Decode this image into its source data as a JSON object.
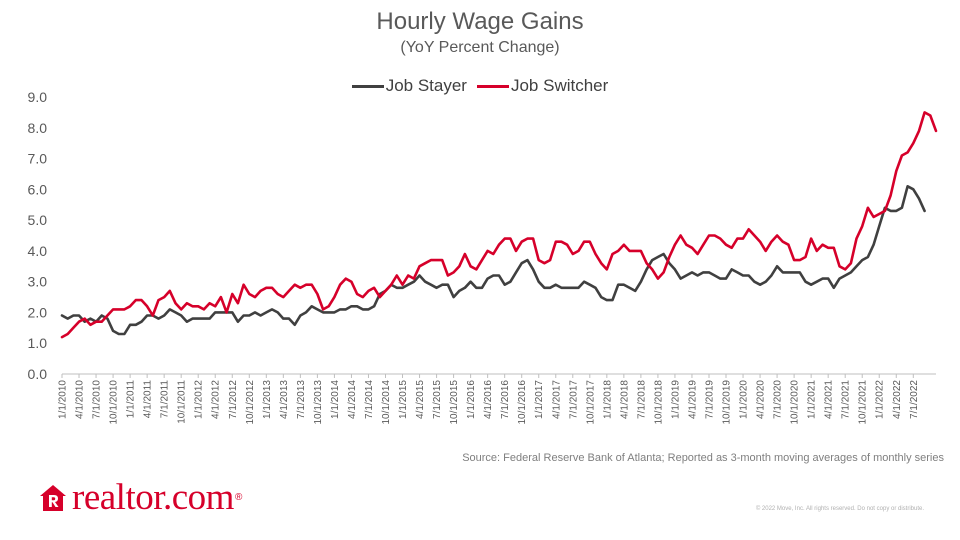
{
  "chart_data": {
    "type": "line",
    "title": "Hourly Wage Gains",
    "subtitle": "(YoY Percent Change)",
    "ylim": [
      0,
      9
    ],
    "yticks": [
      "0.0",
      "1.0",
      "2.0",
      "3.0",
      "4.0",
      "5.0",
      "6.0",
      "7.0",
      "8.0",
      "9.0"
    ],
    "grid": false,
    "legend_position": "top-center",
    "start_month": "2010-01",
    "xtick_labels": [
      "1/1/2010",
      "4/1/2010",
      "7/1/2010",
      "10/1/2010",
      "1/1/2011",
      "4/1/2011",
      "7/1/2011",
      "10/1/2011",
      "1/1/2012",
      "4/1/2012",
      "7/1/2012",
      "10/1/2012",
      "1/1/2013",
      "4/1/2013",
      "7/1/2013",
      "10/1/2013",
      "1/1/2014",
      "4/1/2014",
      "7/1/2014",
      "10/1/2014",
      "1/1/2015",
      "4/1/2015",
      "7/1/2015",
      "10/1/2015",
      "1/1/2016",
      "4/1/2016",
      "7/1/2016",
      "10/1/2016",
      "1/1/2017",
      "4/1/2017",
      "7/1/2017",
      "10/1/2017",
      "1/1/2018",
      "4/1/2018",
      "7/1/2018",
      "10/1/2018",
      "1/1/2019",
      "4/1/2019",
      "7/1/2019",
      "10/1/2019",
      "1/1/2020",
      "4/1/2020",
      "7/1/2020",
      "10/1/2020",
      "1/1/2021",
      "4/1/2021",
      "7/1/2021",
      "10/1/2021",
      "1/1/2022",
      "4/1/2022",
      "7/1/2022"
    ],
    "series": [
      {
        "name": "Job Stayer",
        "color": "#404040",
        "values": [
          1.9,
          1.8,
          1.9,
          1.9,
          1.7,
          1.8,
          1.7,
          1.9,
          1.8,
          1.4,
          1.3,
          1.3,
          1.6,
          1.6,
          1.7,
          1.9,
          1.9,
          1.8,
          1.9,
          2.1,
          2.0,
          1.9,
          1.7,
          1.8,
          1.8,
          1.8,
          1.8,
          2.0,
          2.0,
          2.0,
          2.0,
          1.7,
          1.9,
          1.9,
          2.0,
          1.9,
          2.0,
          2.1,
          2.0,
          1.8,
          1.8,
          1.6,
          1.9,
          2.0,
          2.2,
          2.1,
          2.0,
          2.0,
          2.0,
          2.1,
          2.1,
          2.2,
          2.2,
          2.1,
          2.1,
          2.2,
          2.6,
          2.7,
          2.9,
          2.8,
          2.8,
          2.9,
          3.0,
          3.2,
          3.0,
          2.9,
          2.8,
          2.9,
          2.9,
          2.5,
          2.7,
          2.8,
          3.0,
          2.8,
          2.8,
          3.1,
          3.2,
          3.2,
          2.9,
          3.0,
          3.3,
          3.6,
          3.7,
          3.4,
          3.0,
          2.8,
          2.8,
          2.9,
          2.8,
          2.8,
          2.8,
          2.8,
          3.0,
          2.9,
          2.8,
          2.5,
          2.4,
          2.4,
          2.9,
          2.9,
          2.8,
          2.7,
          3.0,
          3.4,
          3.7,
          3.8,
          3.9,
          3.6,
          3.4,
          3.1,
          3.2,
          3.3,
          3.2,
          3.3,
          3.3,
          3.2,
          3.1,
          3.1,
          3.4,
          3.3,
          3.2,
          3.2,
          3.0,
          2.9,
          3.0,
          3.2,
          3.5,
          3.3,
          3.3,
          3.3,
          3.3,
          3.0,
          2.9,
          3.0,
          3.1,
          3.1,
          2.8,
          3.1,
          3.2,
          3.3,
          3.5,
          3.7,
          3.8,
          4.2,
          4.8,
          5.4,
          5.3,
          5.3,
          5.4,
          6.1,
          6.0,
          5.7,
          5.3
        ]
      },
      {
        "name": "Job Switcher",
        "color": "#d6002a",
        "values": [
          1.2,
          1.3,
          1.5,
          1.7,
          1.8,
          1.6,
          1.7,
          1.7,
          1.9,
          2.1,
          2.1,
          2.1,
          2.2,
          2.4,
          2.4,
          2.2,
          1.9,
          2.4,
          2.5,
          2.7,
          2.3,
          2.1,
          2.3,
          2.2,
          2.2,
          2.1,
          2.3,
          2.2,
          2.5,
          2.0,
          2.6,
          2.3,
          2.9,
          2.6,
          2.5,
          2.7,
          2.8,
          2.8,
          2.6,
          2.5,
          2.7,
          2.9,
          2.8,
          2.9,
          2.9,
          2.6,
          2.1,
          2.2,
          2.5,
          2.9,
          3.1,
          3.0,
          2.6,
          2.5,
          2.7,
          2.8,
          2.5,
          2.7,
          2.9,
          3.2,
          2.9,
          3.2,
          3.1,
          3.5,
          3.6,
          3.7,
          3.7,
          3.7,
          3.2,
          3.3,
          3.5,
          3.9,
          3.5,
          3.4,
          3.7,
          4.0,
          3.9,
          4.2,
          4.4,
          4.4,
          4.0,
          4.3,
          4.4,
          4.4,
          3.7,
          3.6,
          3.7,
          4.3,
          4.3,
          4.2,
          3.9,
          4.0,
          4.3,
          4.3,
          3.9,
          3.6,
          3.4,
          3.9,
          4.0,
          4.2,
          4.0,
          4.0,
          4.0,
          3.6,
          3.4,
          3.1,
          3.3,
          3.8,
          4.2,
          4.5,
          4.2,
          4.1,
          3.9,
          4.2,
          4.5,
          4.5,
          4.4,
          4.2,
          4.1,
          4.4,
          4.4,
          4.7,
          4.5,
          4.3,
          4.0,
          4.3,
          4.5,
          4.3,
          4.2,
          3.7,
          3.7,
          3.8,
          4.4,
          4.0,
          4.2,
          4.1,
          4.1,
          3.5,
          3.4,
          3.6,
          4.4,
          4.8,
          5.4,
          5.1,
          5.2,
          5.3,
          5.8,
          6.6,
          7.1,
          7.2,
          7.5,
          7.9,
          8.5,
          8.4,
          7.9
        ]
      }
    ]
  },
  "source_text": "Source: Federal Reserve Bank of Atlanta; Reported as 3-month moving averages of monthly series",
  "logo": {
    "text": "realtor.com",
    "registered": "®"
  },
  "copyright": "© 2022 Move, Inc. All rights reserved. Do not copy or distribute."
}
